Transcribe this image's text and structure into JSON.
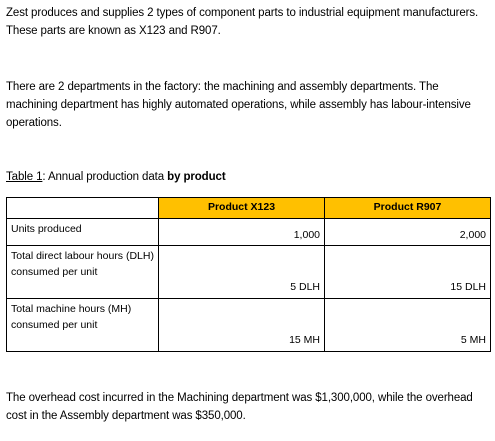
{
  "paragraphs": {
    "intro": "Zest produces and supplies 2 types of component parts to industrial equipment manufacturers. These parts are known as X123 and R907.",
    "departments": "There are 2 departments in the factory: the machining and assembly departments. The machining department has highly automated operations, while assembly has labour-intensive operations.",
    "overhead": "The overhead cost incurred in the Machining department was $1,300,000, while the overhead cost in the Assembly department was $350,000."
  },
  "table": {
    "caption_label": "Table 1",
    "caption_text": ": Annual production data ",
    "caption_bold": "by product",
    "headers": [
      "",
      "Product X123",
      "Product R907"
    ],
    "rows": [
      {
        "label": "Units produced",
        "values": [
          "1,000",
          "2,000"
        ]
      },
      {
        "label": "Total direct labour hours (DLH) consumed per unit",
        "values": [
          "5 DLH",
          "15 DLH"
        ]
      },
      {
        "label": "Total machine hours (MH) consumed per unit",
        "values": [
          "15 MH",
          "5 MH"
        ]
      }
    ]
  },
  "colors": {
    "header_fill": "#FFC000"
  }
}
